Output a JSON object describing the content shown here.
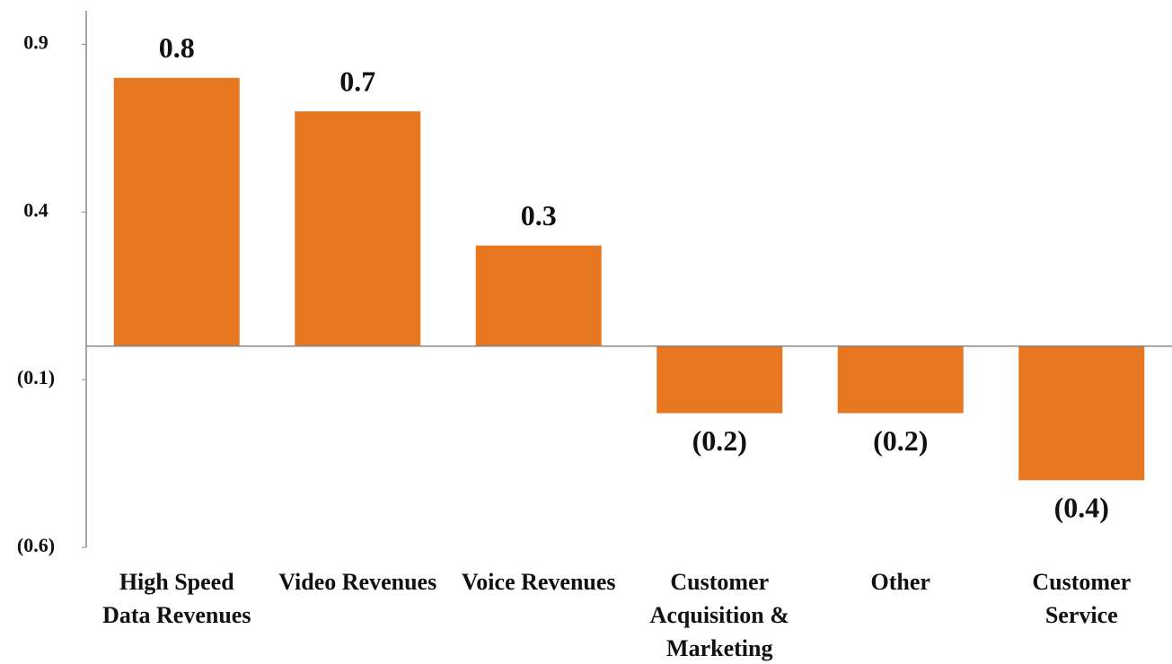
{
  "chart_data": {
    "type": "bar",
    "categories": [
      "High Speed Data Revenues",
      "Video Revenues",
      "Voice Revenues",
      "Customer Acquisition & Marketing",
      "Other",
      "Customer Service"
    ],
    "values": [
      0.8,
      0.7,
      0.3,
      -0.2,
      -0.2,
      -0.4
    ],
    "value_labels": [
      "0.8",
      "0.7",
      "0.3",
      "(0.2)",
      "(0.2)",
      "(0.4)"
    ],
    "color": "#e87722",
    "ylim": [
      -0.6,
      1.0
    ],
    "yticks": [
      0.9,
      0.4,
      {
        "value": -0.1,
        "label": "(0.1)"
      },
      {
        "value": -0.6,
        "label": "(0.6)"
      }
    ],
    "grid": false
  }
}
